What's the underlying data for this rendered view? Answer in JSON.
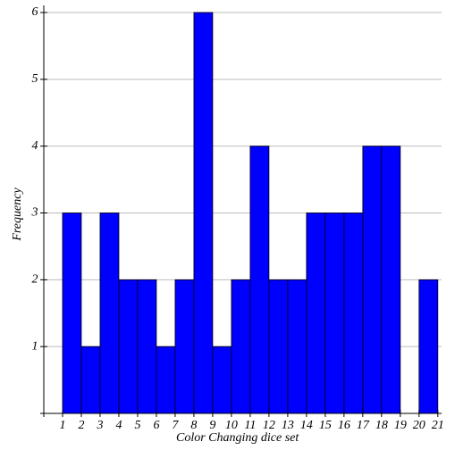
{
  "chart_data": {
    "type": "histogram",
    "xlabel": "Color Changing dice set",
    "ylabel": "Frequency",
    "bins": [
      1,
      2,
      3,
      4,
      5,
      6,
      7,
      8,
      9,
      10,
      11,
      12,
      13,
      14,
      15,
      16,
      17,
      18,
      19,
      20,
      21
    ],
    "values": [
      3,
      1,
      3,
      2,
      2,
      1,
      2,
      6,
      1,
      2,
      4,
      2,
      2,
      3,
      3,
      3,
      4,
      4,
      0,
      2
    ],
    "color": "#0000ff",
    "xlim": [
      0,
      21.2
    ],
    "ylim": [
      0,
      6
    ],
    "xticks": [
      1,
      2,
      3,
      4,
      5,
      6,
      7,
      8,
      9,
      10,
      11,
      12,
      13,
      14,
      15,
      16,
      17,
      18,
      19,
      20,
      21
    ],
    "yticks": [
      1,
      2,
      3,
      4,
      5,
      6
    ],
    "grid": true
  }
}
